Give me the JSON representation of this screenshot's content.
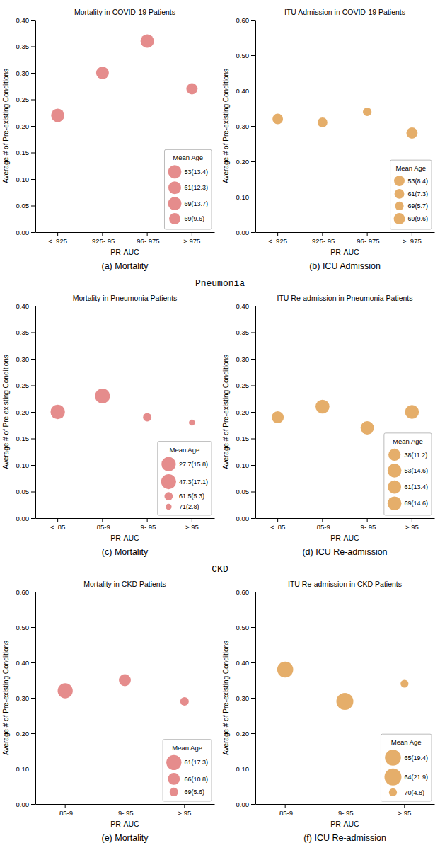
{
  "chart_data": [
    {
      "type": "scatter",
      "title": "Mortality in COVID-19 Patients",
      "subtitle": "(a)  Mortality",
      "xlabel": "PR-AUC",
      "ylabel": "Average # of Pre-existing Conditions",
      "categories": [
        "< .925",
        ".925-.95",
        ".96-.975",
        ">.975"
      ],
      "values": [
        0.22,
        0.3,
        0.36,
        0.27
      ],
      "sizes": [
        134,
        123,
        137,
        96
      ],
      "color": "#e07878",
      "ylim": [
        0.0,
        0.4
      ],
      "yticks": [
        {
          "value": 0.0,
          "label": "0.00"
        },
        0.05,
        {
          "value": 0.1,
          "label": "0.10"
        },
        0.15,
        {
          "value": 0.2,
          "label": "0.20"
        },
        0.25,
        {
          "value": 0.3,
          "label": "0.30"
        },
        0.35,
        {
          "value": 0.4,
          "label": "0.40"
        }
      ],
      "legend": "lower right",
      "legend_title": "Mean Age",
      "legend_labels": [
        "53(13.4)",
        "61(12.3)",
        "69(13.7)",
        "69(9.6)"
      ]
    },
    {
      "type": "scatter",
      "title": "ITU Admission in COVID-19 Patients",
      "subtitle": "(b)  ICU Admission",
      "xlabel": "PR-AUC",
      "ylabel": "Average # of Pre-existing Conditions",
      "categories": [
        "< .925",
        ".925-.95",
        ".96-.975",
        "> .975"
      ],
      "values": [
        0.32,
        0.31,
        0.34,
        0.28
      ],
      "sizes": [
        84,
        73,
        57,
        96
      ],
      "color": "#e0a050",
      "ylim": [
        0.0,
        0.6
      ],
      "yticks": [
        {
          "value": 0.0,
          "label": "0.00"
        },
        {
          "value": 0.1,
          "label": "0.10"
        },
        {
          "value": 0.2,
          "label": "0.20"
        },
        {
          "value": 0.3,
          "label": "0.30"
        },
        {
          "value": 0.4,
          "label": "0.40"
        },
        {
          "value": 0.5,
          "label": "0.50"
        },
        {
          "value": 0.6,
          "label": "0.60"
        }
      ],
      "legend": "lower right",
      "legend_title": "Mean Age",
      "legend_labels": [
        "53(8.4)",
        "61(7.3)",
        "69(5.7)",
        "69(9.6)"
      ]
    },
    {
      "type": "scatter",
      "title": "Mortality in Pneumonia Patients",
      "subtitle": "(c)  Mortality",
      "annotations": [
        "Pneumonia"
      ],
      "xlabel": "PR-AUC",
      "ylabel": "Average # of Pre existing Conditions",
      "categories": [
        "< .85",
        ".85-9",
        ".9-.95",
        ">.95"
      ],
      "values": [
        0.2,
        0.23,
        0.19,
        0.18
      ],
      "sizes": [
        158,
        171,
        53,
        28
      ],
      "color": "#e07878",
      "ylim": [
        0.0,
        0.4
      ],
      "yticks": [
        {
          "value": 0.0,
          "label": "0.00"
        },
        0.05,
        {
          "value": 0.1,
          "label": "0.10"
        },
        0.15,
        {
          "value": 0.2,
          "label": "0.20"
        },
        0.25,
        {
          "value": 0.3,
          "label": "0.30"
        },
        0.35,
        {
          "value": 0.4,
          "label": "0.40"
        }
      ],
      "legend": "lower right",
      "legend_title": "Mean Age",
      "legend_labels": [
        "27.7(15.8)",
        "47.3(17.1)",
        "61.5(5.3)",
        "71(2.8)"
      ]
    },
    {
      "type": "scatter",
      "title": "ITU Re-admission in Pneumonia Patients",
      "subtitle": "(d)  ICU Re-admission",
      "xlabel": "PR-AUC",
      "ylabel": "Average # of Pre-existing Conditions",
      "categories": [
        "< .85",
        ".85-9",
        ".9-.95",
        ">.95"
      ],
      "values": [
        0.19,
        0.21,
        0.17,
        0.2
      ],
      "sizes": [
        112,
        146,
        134,
        146
      ],
      "color": "#e0a050",
      "ylim": [
        0.0,
        0.4
      ],
      "yticks": [
        {
          "value": 0.0,
          "label": "0.00"
        },
        0.05,
        {
          "value": 0.1,
          "label": "0.10"
        },
        0.15,
        {
          "value": 0.2,
          "label": "0.20"
        },
        0.25,
        {
          "value": 0.3,
          "label": "0.30"
        },
        0.35,
        {
          "value": 0.4,
          "label": "0.40"
        }
      ],
      "legend": "lower right",
      "legend_title": "Mean Age",
      "legend_labels": [
        "38(11.2)",
        "53(14.6)",
        "61(13.4)",
        "69(14.6)"
      ]
    },
    {
      "type": "scatter",
      "title": "Mortality in CKD Patients",
      "subtitle": "(e)  Mortality",
      "annotations": [
        "CKD"
      ],
      "xlabel": "PR-AUC",
      "ylabel": "Average # of Pre-existing Conditions",
      "categories": [
        ".85-9",
        ".9-.95",
        ">.95"
      ],
      "values": [
        0.32,
        0.35,
        0.29
      ],
      "sizes": [
        173,
        108,
        56
      ],
      "color": "#e07878",
      "ylim": [
        0.0,
        0.6
      ],
      "yticks": [
        {
          "value": 0.0,
          "label": "0.00"
        },
        {
          "value": 0.1,
          "label": "0.10"
        },
        {
          "value": 0.2,
          "label": "0.20"
        },
        {
          "value": 0.3,
          "label": "0.30"
        },
        {
          "value": 0.4,
          "label": "0.40"
        },
        {
          "value": 0.5,
          "label": "0.50"
        },
        {
          "value": 0.6,
          "label": "0.60"
        }
      ],
      "legend": "lower right",
      "legend_title": "Mean Age",
      "legend_labels": [
        "61(17.3)",
        "66(10.8)",
        "69(5.6)"
      ]
    },
    {
      "type": "scatter",
      "title": "ITU Re-admission in CKD Patients",
      "subtitle": "(f)  ICU Re-admission",
      "xlabel": "PR-AUC",
      "ylabel": "Average # of Pre-existing Conditions",
      "categories": [
        ".85-9",
        ".9-.95",
        ">.95"
      ],
      "values": [
        0.38,
        0.29,
        0.34
      ],
      "sizes": [
        194,
        219,
        48
      ],
      "color": "#e0a050",
      "ylim": [
        0.0,
        0.6
      ],
      "yticks": [
        {
          "value": 0.0,
          "label": "0.00"
        },
        {
          "value": 0.1,
          "label": "0.10"
        },
        {
          "value": 0.2,
          "label": "0.20"
        },
        {
          "value": 0.3,
          "label": "0.30"
        },
        {
          "value": 0.4,
          "label": "0.40"
        },
        {
          "value": 0.5,
          "label": "0.50"
        },
        {
          "value": 0.6,
          "label": "0.60"
        }
      ],
      "legend": "lower right",
      "legend_title": "Mean Age",
      "legend_labels": [
        "65(19.4)",
        "64(21.9)",
        "70(4.8)"
      ]
    }
  ]
}
